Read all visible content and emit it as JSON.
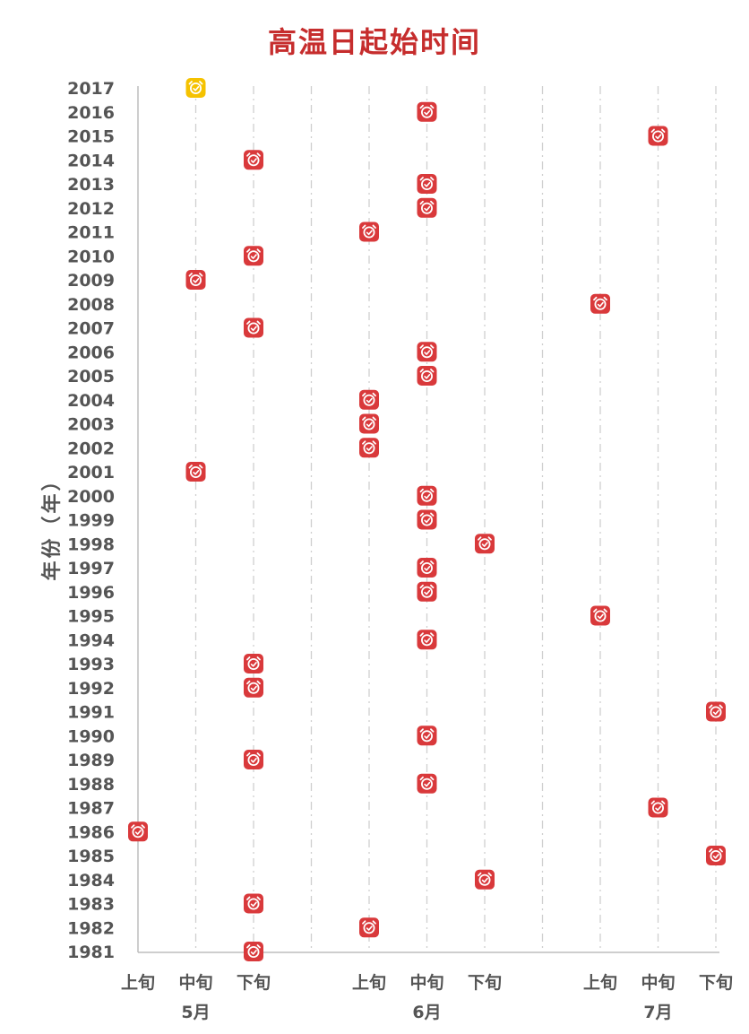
{
  "chart_data": {
    "type": "scatter",
    "title": "高温日起始时间",
    "ylabel": "年份（年）",
    "x_categories": [
      "上旬",
      "中旬",
      "下旬",
      "上旬",
      "中旬",
      "下旬",
      "上旬",
      "中旬",
      "下旬"
    ],
    "x_months": [
      "5月",
      "6月",
      "7月"
    ],
    "y_range": [
      1981,
      2017
    ],
    "points": [
      {
        "year": 2017,
        "period": "5月中旬",
        "highlight": true
      },
      {
        "year": 2016,
        "period": "6月中旬"
      },
      {
        "year": 2015,
        "period": "7月中旬"
      },
      {
        "year": 2014,
        "period": "5月下旬"
      },
      {
        "year": 2013,
        "period": "6月中旬"
      },
      {
        "year": 2012,
        "period": "6月中旬"
      },
      {
        "year": 2011,
        "period": "6月上旬"
      },
      {
        "year": 2010,
        "period": "5月下旬"
      },
      {
        "year": 2009,
        "period": "5月中旬"
      },
      {
        "year": 2008,
        "period": "7月上旬"
      },
      {
        "year": 2007,
        "period": "5月下旬"
      },
      {
        "year": 2006,
        "period": "6月中旬"
      },
      {
        "year": 2005,
        "period": "6月中旬"
      },
      {
        "year": 2004,
        "period": "6月上旬"
      },
      {
        "year": 2003,
        "period": "6月上旬"
      },
      {
        "year": 2002,
        "period": "6月上旬"
      },
      {
        "year": 2001,
        "period": "5月中旬"
      },
      {
        "year": 2000,
        "period": "6月中旬"
      },
      {
        "year": 1999,
        "period": "6月中旬"
      },
      {
        "year": 1998,
        "period": "6月下旬"
      },
      {
        "year": 1997,
        "period": "6月中旬"
      },
      {
        "year": 1996,
        "period": "6月中旬"
      },
      {
        "year": 1995,
        "period": "7月上旬"
      },
      {
        "year": 1994,
        "period": "6月中旬"
      },
      {
        "year": 1993,
        "period": "5月下旬"
      },
      {
        "year": 1992,
        "period": "5月下旬"
      },
      {
        "year": 1991,
        "period": "7月下旬"
      },
      {
        "year": 1990,
        "period": "6月中旬"
      },
      {
        "year": 1989,
        "period": "5月下旬"
      },
      {
        "year": 1988,
        "period": "6月中旬"
      },
      {
        "year": 1987,
        "period": "7月中旬"
      },
      {
        "year": 1986,
        "period": "5月上旬"
      },
      {
        "year": 1985,
        "period": "7月下旬"
      },
      {
        "year": 1984,
        "period": "6月下旬"
      },
      {
        "year": 1983,
        "period": "5月下旬"
      },
      {
        "year": 1982,
        "period": "6月上旬"
      },
      {
        "year": 1981,
        "period": "5月下旬"
      }
    ],
    "marker_icon": "alarm-clock-icon",
    "colors": {
      "marker": "#d9393b",
      "highlight": "#f5c200",
      "title": "#c62d2d",
      "grid": "#cfcfcf"
    }
  }
}
